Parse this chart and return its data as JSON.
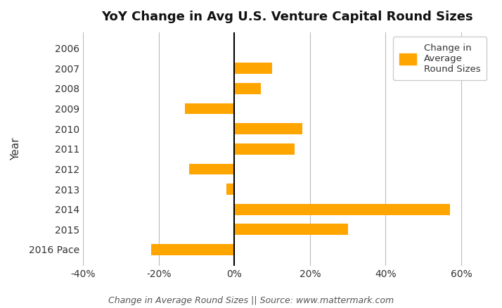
{
  "categories": [
    "2006",
    "2007",
    "2008",
    "2009",
    "2010",
    "2011",
    "2012",
    "2013",
    "2014",
    "2015",
    "2016 Pace"
  ],
  "values": [
    0,
    0.1,
    0.07,
    -0.13,
    0.18,
    0.16,
    -0.12,
    -0.02,
    0.57,
    0.3,
    -0.22
  ],
  "bar_color": "#FFA500",
  "title": "YoY Change in Avg U.S. Venture Capital Round Sizes",
  "ylabel": "Year",
  "xlabel": "Change in Average Round Sizes || Source: www.mattermark.com",
  "legend_label": "Change in\nAverage\nRound Sizes",
  "xlim": [
    -0.4,
    0.68
  ],
  "xticks": [
    -0.4,
    -0.2,
    0.0,
    0.2,
    0.4,
    0.6
  ],
  "xtick_labels": [
    "-40%",
    "-20%",
    "0%",
    "20%",
    "40%",
    "60%"
  ],
  "background_color": "#ffffff",
  "grid_color": "#bbbbbb",
  "title_fontsize": 13,
  "axis_label_fontsize": 11,
  "tick_fontsize": 10,
  "source_fontsize": 9
}
